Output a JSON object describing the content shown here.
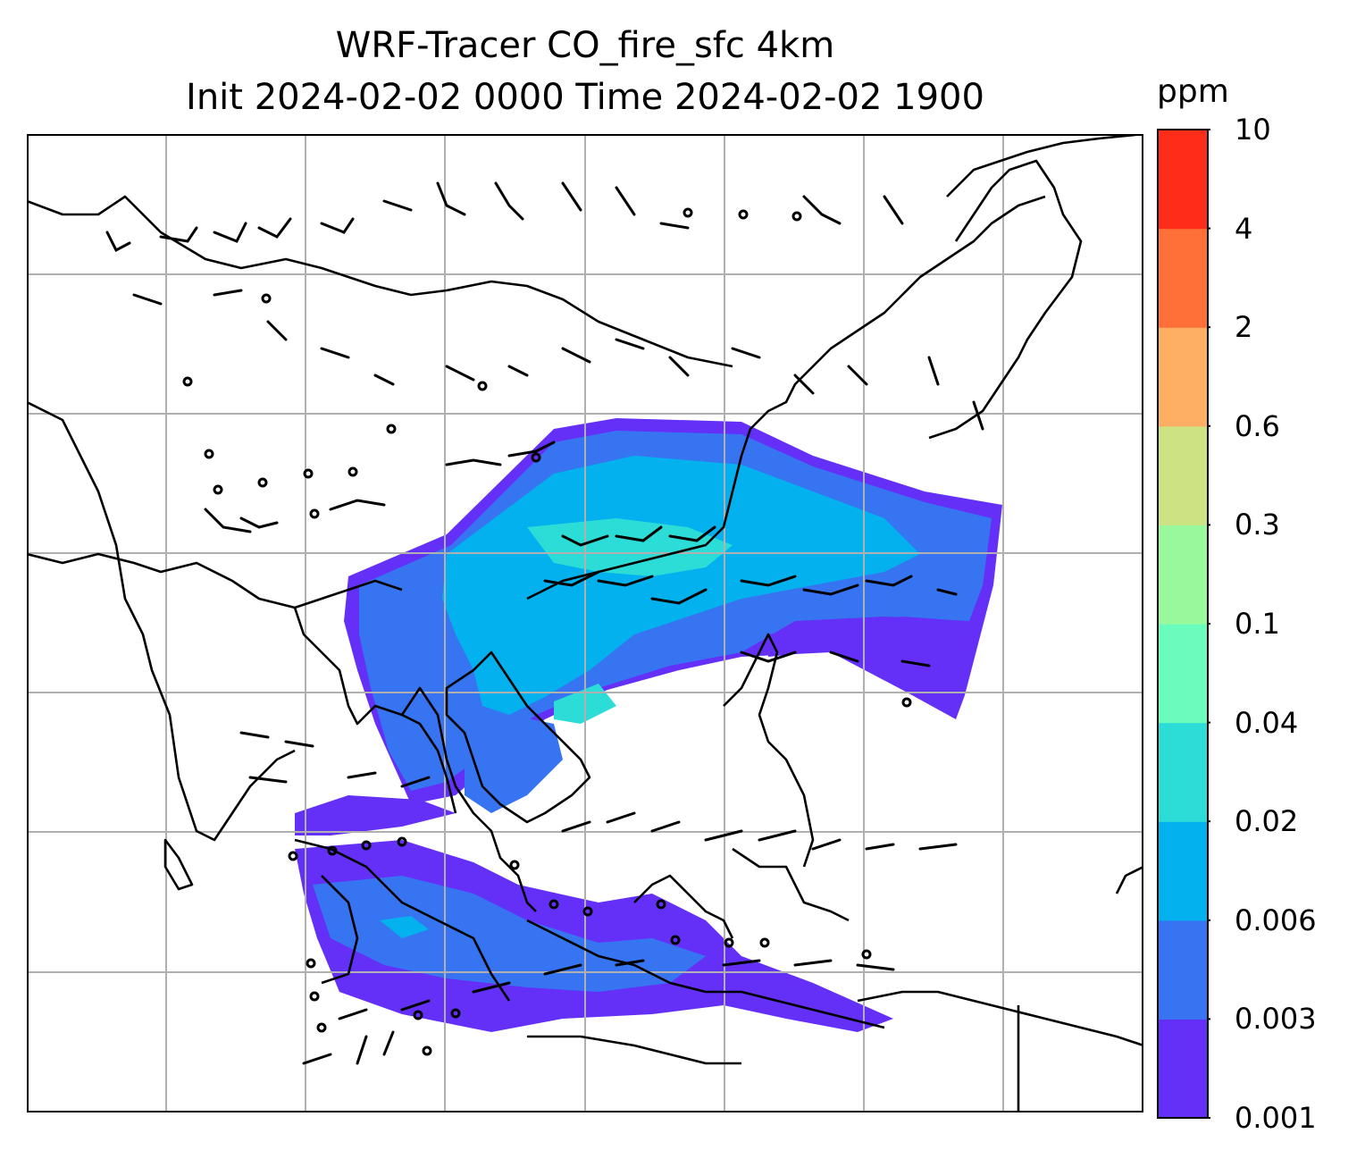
{
  "title": {
    "line1": "WRF-Tracer CO_fire_sfc 4km",
    "line2": "Init 2024-02-02 0000 Time 2024-02-02 1900"
  },
  "colorbar": {
    "unit": "ppm",
    "levels": [
      "0.001",
      "0.003",
      "0.006",
      "0.02",
      "0.04",
      "0.1",
      "0.3",
      "0.6",
      "2",
      "4",
      "10"
    ],
    "colors": [
      "#6430f8",
      "#3774f1",
      "#02b1ee",
      "#2cdcd6",
      "#6afcbc",
      "#98f89c",
      "#cde283",
      "#feaf64",
      "#fe7038",
      "#fe2c18"
    ]
  },
  "map": {
    "field": "CO_fire_sfc",
    "overlay": "wind barbs",
    "gridlines": true
  }
}
